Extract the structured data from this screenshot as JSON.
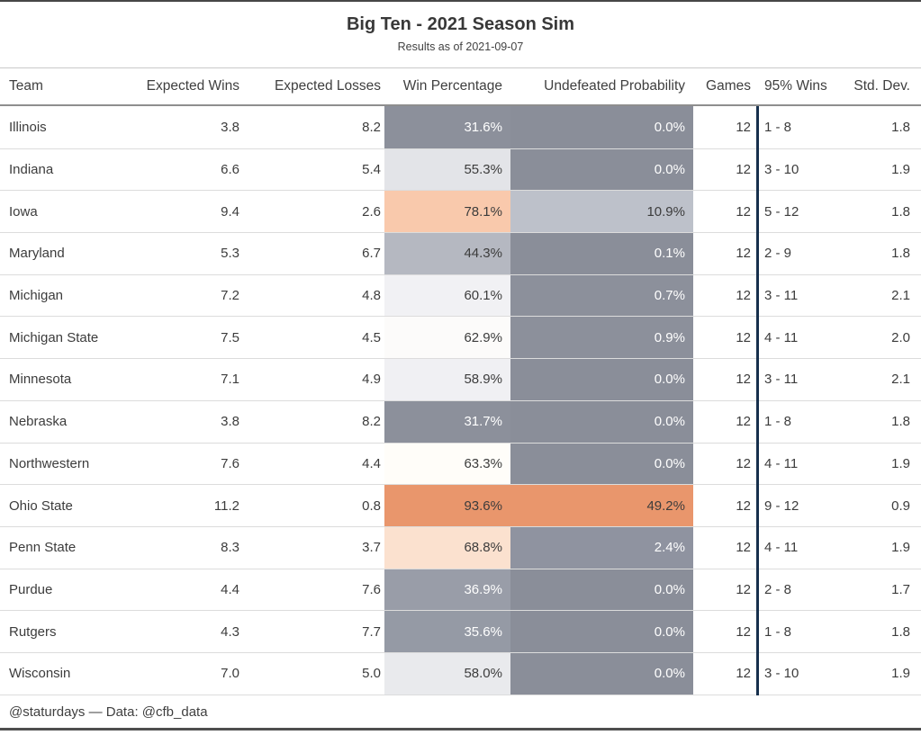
{
  "chart_data": {
    "type": "table",
    "title": "Big Ten - 2021 Season Sim",
    "subtitle": "Results as of 2021-09-07",
    "footnote": "@staturdays — Data: @cfb_data",
    "columns": [
      "Team",
      "Expected Wins",
      "Expected Losses",
      "Win Percentage",
      "Undefeated Probability",
      "Games",
      "95% Wins",
      "Std. Dev."
    ],
    "rows": [
      {
        "team": "Illinois",
        "expected_wins": "3.8",
        "expected_losses": "8.2",
        "win_percentage": "31.6%",
        "win_bg": "#8c909b",
        "win_fg": "#ffffff",
        "undefeated_probability": "0.0%",
        "undef_bg": "#8a8e99",
        "undef_fg": "#ffffff",
        "games": "12",
        "wins_95": "1 - 8",
        "std_dev": "1.8"
      },
      {
        "team": "Indiana",
        "expected_wins": "6.6",
        "expected_losses": "5.4",
        "win_percentage": "55.3%",
        "win_bg": "#e3e4e8",
        "win_fg": "#3c3c3c",
        "undefeated_probability": "0.0%",
        "undef_bg": "#8a8e99",
        "undef_fg": "#ffffff",
        "games": "12",
        "wins_95": "3 - 10",
        "std_dev": "1.9"
      },
      {
        "team": "Iowa",
        "expected_wins": "9.4",
        "expected_losses": "2.6",
        "win_percentage": "78.1%",
        "win_bg": "#f9c9ac",
        "win_fg": "#3c3c3c",
        "undefeated_probability": "10.9%",
        "undef_bg": "#bdc1ca",
        "undef_fg": "#3c3c3c",
        "games": "12",
        "wins_95": "5 - 12",
        "std_dev": "1.8"
      },
      {
        "team": "Maryland",
        "expected_wins": "5.3",
        "expected_losses": "6.7",
        "win_percentage": "44.3%",
        "win_bg": "#b5b8c1",
        "win_fg": "#3c3c3c",
        "undefeated_probability": "0.1%",
        "undef_bg": "#8a8e99",
        "undef_fg": "#ffffff",
        "games": "12",
        "wins_95": "2 - 9",
        "std_dev": "1.8"
      },
      {
        "team": "Michigan",
        "expected_wins": "7.2",
        "expected_losses": "4.8",
        "win_percentage": "60.1%",
        "win_bg": "#f1f1f4",
        "win_fg": "#3c3c3c",
        "undefeated_probability": "0.7%",
        "undef_bg": "#8c909b",
        "undef_fg": "#ffffff",
        "games": "12",
        "wins_95": "3 - 11",
        "std_dev": "2.1"
      },
      {
        "team": "Michigan State",
        "expected_wins": "7.5",
        "expected_losses": "4.5",
        "win_percentage": "62.9%",
        "win_bg": "#fcfbfa",
        "win_fg": "#3c3c3c",
        "undefeated_probability": "0.9%",
        "undef_bg": "#8c909b",
        "undef_fg": "#ffffff",
        "games": "12",
        "wins_95": "4 - 11",
        "std_dev": "2.0"
      },
      {
        "team": "Minnesota",
        "expected_wins": "7.1",
        "expected_losses": "4.9",
        "win_percentage": "58.9%",
        "win_bg": "#f0f0f3",
        "win_fg": "#3c3c3c",
        "undefeated_probability": "0.0%",
        "undef_bg": "#8a8e99",
        "undef_fg": "#ffffff",
        "games": "12",
        "wins_95": "3 - 11",
        "std_dev": "2.1"
      },
      {
        "team": "Nebraska",
        "expected_wins": "3.8",
        "expected_losses": "8.2",
        "win_percentage": "31.7%",
        "win_bg": "#8c909b",
        "win_fg": "#ffffff",
        "undefeated_probability": "0.0%",
        "undef_bg": "#8a8e99",
        "undef_fg": "#ffffff",
        "games": "12",
        "wins_95": "1 - 8",
        "std_dev": "1.8"
      },
      {
        "team": "Northwestern",
        "expected_wins": "7.6",
        "expected_losses": "4.4",
        "win_percentage": "63.3%",
        "win_bg": "#fffdf9",
        "win_fg": "#3c3c3c",
        "undefeated_probability": "0.0%",
        "undef_bg": "#8a8e99",
        "undef_fg": "#ffffff",
        "games": "12",
        "wins_95": "4 - 11",
        "std_dev": "1.9"
      },
      {
        "team": "Ohio State",
        "expected_wins": "11.2",
        "expected_losses": "0.8",
        "win_percentage": "93.6%",
        "win_bg": "#e9966c",
        "win_fg": "#3c3c3c",
        "undefeated_probability": "49.2%",
        "undef_bg": "#e9966c",
        "undef_fg": "#3c3c3c",
        "games": "12",
        "wins_95": "9 - 12",
        "std_dev": "0.9"
      },
      {
        "team": "Penn State",
        "expected_wins": "8.3",
        "expected_losses": "3.7",
        "win_percentage": "68.8%",
        "win_bg": "#fbe1cf",
        "win_fg": "#3c3c3c",
        "undefeated_probability": "2.4%",
        "undef_bg": "#8f93a0",
        "undef_fg": "#ffffff",
        "games": "12",
        "wins_95": "4 - 11",
        "std_dev": "1.9"
      },
      {
        "team": "Purdue",
        "expected_wins": "4.4",
        "expected_losses": "7.6",
        "win_percentage": "36.9%",
        "win_bg": "#999da8",
        "win_fg": "#ffffff",
        "undefeated_probability": "0.0%",
        "undef_bg": "#8a8e99",
        "undef_fg": "#ffffff",
        "games": "12",
        "wins_95": "2 - 8",
        "std_dev": "1.7"
      },
      {
        "team": "Rutgers",
        "expected_wins": "4.3",
        "expected_losses": "7.7",
        "win_percentage": "35.6%",
        "win_bg": "#959aa5",
        "win_fg": "#ffffff",
        "undefeated_probability": "0.0%",
        "undef_bg": "#8a8e99",
        "undef_fg": "#ffffff",
        "games": "12",
        "wins_95": "1 - 8",
        "std_dev": "1.8"
      },
      {
        "team": "Wisconsin",
        "expected_wins": "7.0",
        "expected_losses": "5.0",
        "win_percentage": "58.0%",
        "win_bg": "#e9eaed",
        "win_fg": "#3c3c3c",
        "undefeated_probability": "0.0%",
        "undef_bg": "#8a8e99",
        "undef_fg": "#ffffff",
        "games": "12",
        "wins_95": "3 - 10",
        "std_dev": "1.9"
      }
    ]
  },
  "colors": {
    "accent_divider": "#17304d",
    "orange_high": "#e9966c",
    "gray_low": "#8c909b",
    "body_text": "#3c3c3c",
    "white_text": "#ffffff",
    "row_line": "#dcdcdc",
    "header_line": "#8e8e8e",
    "frame_line": "#474747"
  }
}
